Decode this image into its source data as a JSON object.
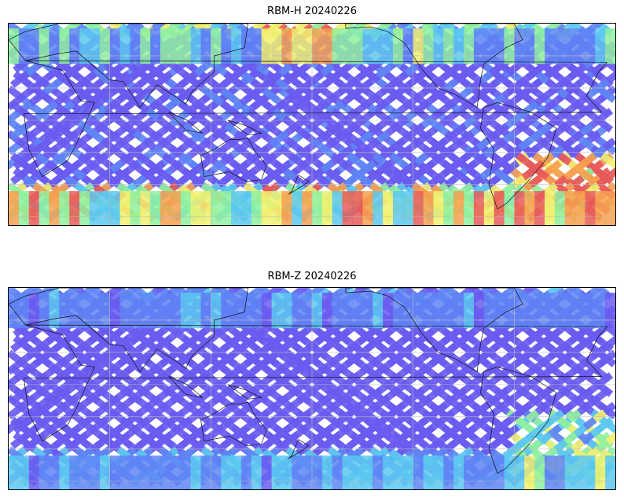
{
  "panels": [
    {
      "title": "RBM-H 20240226",
      "variable": "RBM-H",
      "date": "20240226",
      "intensity": "high"
    },
    {
      "title": "RBM-Z 20240226",
      "variable": "RBM-Z",
      "date": "20240226",
      "intensity": "low"
    }
  ],
  "map": {
    "projection": "PlateCarree",
    "central_longitude": 180,
    "lon_range": [
      0,
      360
    ],
    "lat_range": [
      -65,
      60
    ],
    "gridlines": true,
    "coastlines": true
  },
  "colormap": {
    "name": "jet-like",
    "stops": [
      "#6a5cf0",
      "#5f85f5",
      "#5cc8f0",
      "#8ff0a0",
      "#f0f070",
      "#f5a050",
      "#e85a5a"
    ]
  }
}
